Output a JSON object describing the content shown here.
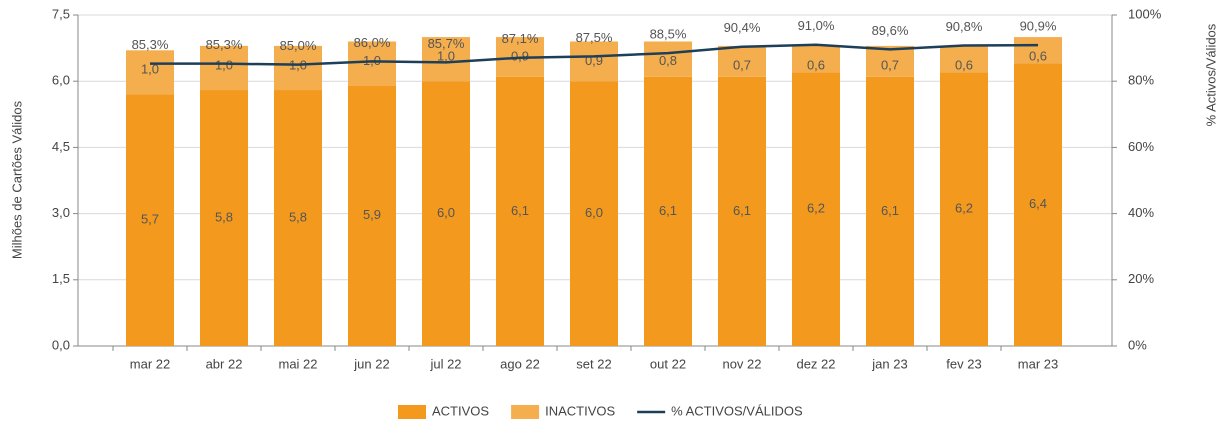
{
  "chart_data": {
    "type": "bar",
    "categories": [
      "mar 22",
      "abr 22",
      "mai 22",
      "jun 22",
      "jul 22",
      "ago 22",
      "set 22",
      "out 22",
      "nov 22",
      "dez 22",
      "jan 23",
      "fev 23",
      "mar 23"
    ],
    "ylabel": "Milhões de Cartões Válidos",
    "y2label": "% Activos/Válidos",
    "ylim": [
      0,
      7.5
    ],
    "yticks": [
      {
        "value": 0,
        "label": "0,0"
      },
      {
        "value": 1.5,
        "label": "1,5"
      },
      {
        "value": 3,
        "label": "3,0"
      },
      {
        "value": 4.5,
        "label": "4,5"
      },
      {
        "value": 6,
        "label": "6,0"
      },
      {
        "value": 7.5,
        "label": "7,5"
      }
    ],
    "y2lim": [
      0,
      100
    ],
    "y2ticks": [
      {
        "value": 0,
        "label": "0%"
      },
      {
        "value": 20,
        "label": "20%"
      },
      {
        "value": 40,
        "label": "40%"
      },
      {
        "value": 60,
        "label": "60%"
      },
      {
        "value": 80,
        "label": "80%"
      },
      {
        "value": 100,
        "label": "100%"
      }
    ],
    "grid": true,
    "legend": "bottom",
    "series": [
      {
        "name": "ACTIVOS",
        "type": "bar",
        "stack": true,
        "color": "#f39a1e",
        "values": [
          5.7,
          5.8,
          5.8,
          5.9,
          6.0,
          6.1,
          6.0,
          6.1,
          6.1,
          6.2,
          6.1,
          6.2,
          6.4
        ],
        "value_labels": [
          "5,7",
          "5,8",
          "5,8",
          "5,9",
          "6,0",
          "6,1",
          "6,0",
          "6,1",
          "6,1",
          "6,2",
          "6,1",
          "6,2",
          "6,4"
        ]
      },
      {
        "name": "INACTIVOS",
        "type": "bar",
        "stack": true,
        "color": "#f5ae4e",
        "values": [
          1.0,
          1.0,
          1.0,
          1.0,
          1.0,
          0.9,
          0.9,
          0.8,
          0.7,
          0.6,
          0.7,
          0.6,
          0.6
        ],
        "value_labels": [
          "1,0",
          "1,0",
          "1,0",
          "1,0",
          "1,0",
          "0,9",
          "0,9",
          "0,8",
          "0,7",
          "0,6",
          "0,7",
          "0,6",
          "0,6"
        ]
      },
      {
        "name": "% ACTIVOS/VÁLIDOS",
        "type": "line",
        "axis": "y2",
        "color": "#1d3f5a",
        "values": [
          85.3,
          85.3,
          85.0,
          86.0,
          85.7,
          87.1,
          87.5,
          88.5,
          90.4,
          91.0,
          89.6,
          90.8,
          90.9
        ],
        "value_labels": [
          "85,3%",
          "85,3%",
          "85,0%",
          "86,0%",
          "85,7%",
          "87,1%",
          "87,5%",
          "88,5%",
          "90,4%",
          "91,0%",
          "89,6%",
          "90,8%",
          "90,9%"
        ]
      }
    ]
  }
}
